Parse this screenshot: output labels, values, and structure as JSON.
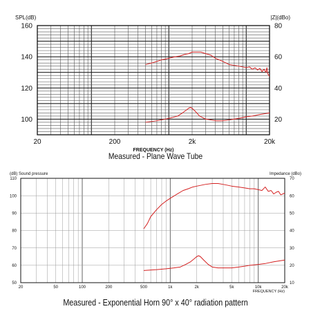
{
  "chart_data": [
    {
      "type": "line",
      "x_scale": "log",
      "xlim": [
        20,
        20000
      ],
      "x_ticks": [
        {
          "value": 20,
          "label": "20"
        },
        {
          "value": 200,
          "label": "200"
        },
        {
          "value": 2000,
          "label": "2k"
        },
        {
          "value": 20000,
          "label": "20k"
        }
      ],
      "xlabel": "FREQUENCY (Hz)",
      "ylabel_left": "SPL(dB)",
      "ylabel_right": "|Z|(dBo)",
      "ylim_left": [
        90,
        160
      ],
      "ylim_right": [
        10,
        80
      ],
      "y_ticks_left": [
        100,
        120,
        140,
        160
      ],
      "y_ticks_right": [
        20,
        40,
        60,
        80
      ],
      "minor_y_step_left": 2,
      "grid": true,
      "caption": "Measured - Plane Wave Tube",
      "line_color": "#d42020",
      "series": [
        {
          "axis": "left",
          "points": [
            [
              500,
              135
            ],
            [
              600,
              136
            ],
            [
              700,
              137
            ],
            [
              800,
              138
            ],
            [
              900,
              138.5
            ],
            [
              1000,
              139
            ],
            [
              1200,
              140
            ],
            [
              1400,
              140.5
            ],
            [
              1600,
              141.5
            ],
            [
              1800,
              142
            ],
            [
              2000,
              143
            ],
            [
              2300,
              143
            ],
            [
              2600,
              143
            ],
            [
              3000,
              142
            ],
            [
              3500,
              141
            ],
            [
              4000,
              139
            ],
            [
              4500,
              138
            ],
            [
              5000,
              137
            ],
            [
              5500,
              136
            ],
            [
              6000,
              135
            ],
            [
              7000,
              134.5
            ],
            [
              8000,
              134
            ],
            [
              9000,
              133.5
            ],
            [
              10000,
              133
            ],
            [
              11000,
              133.5
            ],
            [
              12000,
              132
            ],
            [
              13000,
              133
            ],
            [
              14000,
              131.5
            ],
            [
              15000,
              132.5
            ],
            [
              16000,
              130.5
            ],
            [
              17000,
              132
            ],
            [
              18000,
              130
            ],
            [
              18500,
              133
            ],
            [
              19000,
              129
            ],
            [
              20000,
              127.5
            ]
          ]
        },
        {
          "axis": "right",
          "points": [
            [
              500,
              18
            ],
            [
              700,
              19
            ],
            [
              900,
              20
            ],
            [
              1100,
              21
            ],
            [
              1300,
              22
            ],
            [
              1500,
              24
            ],
            [
              1700,
              26
            ],
            [
              1800,
              27
            ],
            [
              1900,
              27.5
            ],
            [
              2000,
              27
            ],
            [
              2200,
              25
            ],
            [
              2500,
              22
            ],
            [
              3000,
              20
            ],
            [
              3500,
              19.5
            ],
            [
              4000,
              19
            ],
            [
              5000,
              19
            ],
            [
              6000,
              19.5
            ],
            [
              7000,
              20
            ],
            [
              8000,
              20.5
            ],
            [
              10000,
              21.5
            ],
            [
              12000,
              22
            ],
            [
              15000,
              23
            ],
            [
              20000,
              24
            ]
          ]
        }
      ]
    },
    {
      "type": "line",
      "x_scale": "log",
      "xlim": [
        20,
        20000
      ],
      "x_ticks": [
        {
          "value": 20,
          "label": "20"
        },
        {
          "value": 50,
          "label": "50"
        },
        {
          "value": 100,
          "label": "100"
        },
        {
          "value": 200,
          "label": "200"
        },
        {
          "value": 500,
          "label": "500"
        },
        {
          "value": 1000,
          "label": "1k"
        },
        {
          "value": 2000,
          "label": "2k"
        },
        {
          "value": 5000,
          "label": "5k"
        },
        {
          "value": 10000,
          "label": "10k"
        },
        {
          "value": 20000,
          "label": "20k"
        }
      ],
      "xlabel": "FREQUENCY (Hz)",
      "ylabel_left": "(dB) Sound pressure",
      "ylabel_right": "Impedance (dBo)",
      "ylim_left": [
        50,
        110
      ],
      "ylim_right": [
        10,
        70
      ],
      "y_ticks_left": [
        50,
        60,
        70,
        80,
        90,
        100,
        110
      ],
      "y_ticks_right": [
        10,
        20,
        30,
        40,
        50,
        60,
        70
      ],
      "grid": true,
      "caption": "Measured - Exponential Horn 90° x 40° radiation pattern",
      "line_color": "#d42020",
      "series": [
        {
          "axis": "left",
          "points": [
            [
              500,
              81
            ],
            [
              550,
              84
            ],
            [
              600,
              88
            ],
            [
              700,
              92
            ],
            [
              800,
              95
            ],
            [
              900,
              97
            ],
            [
              1000,
              98.5
            ],
            [
              1200,
              101
            ],
            [
              1400,
              103
            ],
            [
              1600,
              104
            ],
            [
              1800,
              105
            ],
            [
              2000,
              105.5
            ],
            [
              2500,
              106.5
            ],
            [
              3000,
              107
            ],
            [
              3500,
              107
            ],
            [
              4000,
              106.5
            ],
            [
              4500,
              106
            ],
            [
              5000,
              105.5
            ],
            [
              6000,
              105
            ],
            [
              7000,
              104.5
            ],
            [
              8000,
              104
            ],
            [
              9000,
              104
            ],
            [
              10000,
              103.5
            ],
            [
              11000,
              103
            ],
            [
              12000,
              105
            ],
            [
              13000,
              102.5
            ],
            [
              14000,
              103
            ],
            [
              15000,
              101
            ],
            [
              16000,
              102
            ],
            [
              17000,
              102.5
            ],
            [
              18000,
              100.5
            ],
            [
              20000,
              101.5
            ]
          ]
        },
        {
          "axis": "right",
          "points": [
            [
              500,
              17
            ],
            [
              700,
              17.5
            ],
            [
              900,
              18
            ],
            [
              1100,
              18.5
            ],
            [
              1300,
              19
            ],
            [
              1500,
              20.5
            ],
            [
              1700,
              22
            ],
            [
              1900,
              24
            ],
            [
              2000,
              25
            ],
            [
              2100,
              25.5
            ],
            [
              2200,
              25
            ],
            [
              2400,
              23
            ],
            [
              2700,
              20.5
            ],
            [
              3000,
              19
            ],
            [
              3500,
              18.5
            ],
            [
              4000,
              18.5
            ],
            [
              5000,
              18.5
            ],
            [
              6000,
              19
            ],
            [
              7000,
              19.5
            ],
            [
              8000,
              20
            ],
            [
              10000,
              20.5
            ],
            [
              12000,
              21
            ],
            [
              15000,
              22
            ],
            [
              20000,
              23
            ]
          ]
        }
      ]
    }
  ]
}
